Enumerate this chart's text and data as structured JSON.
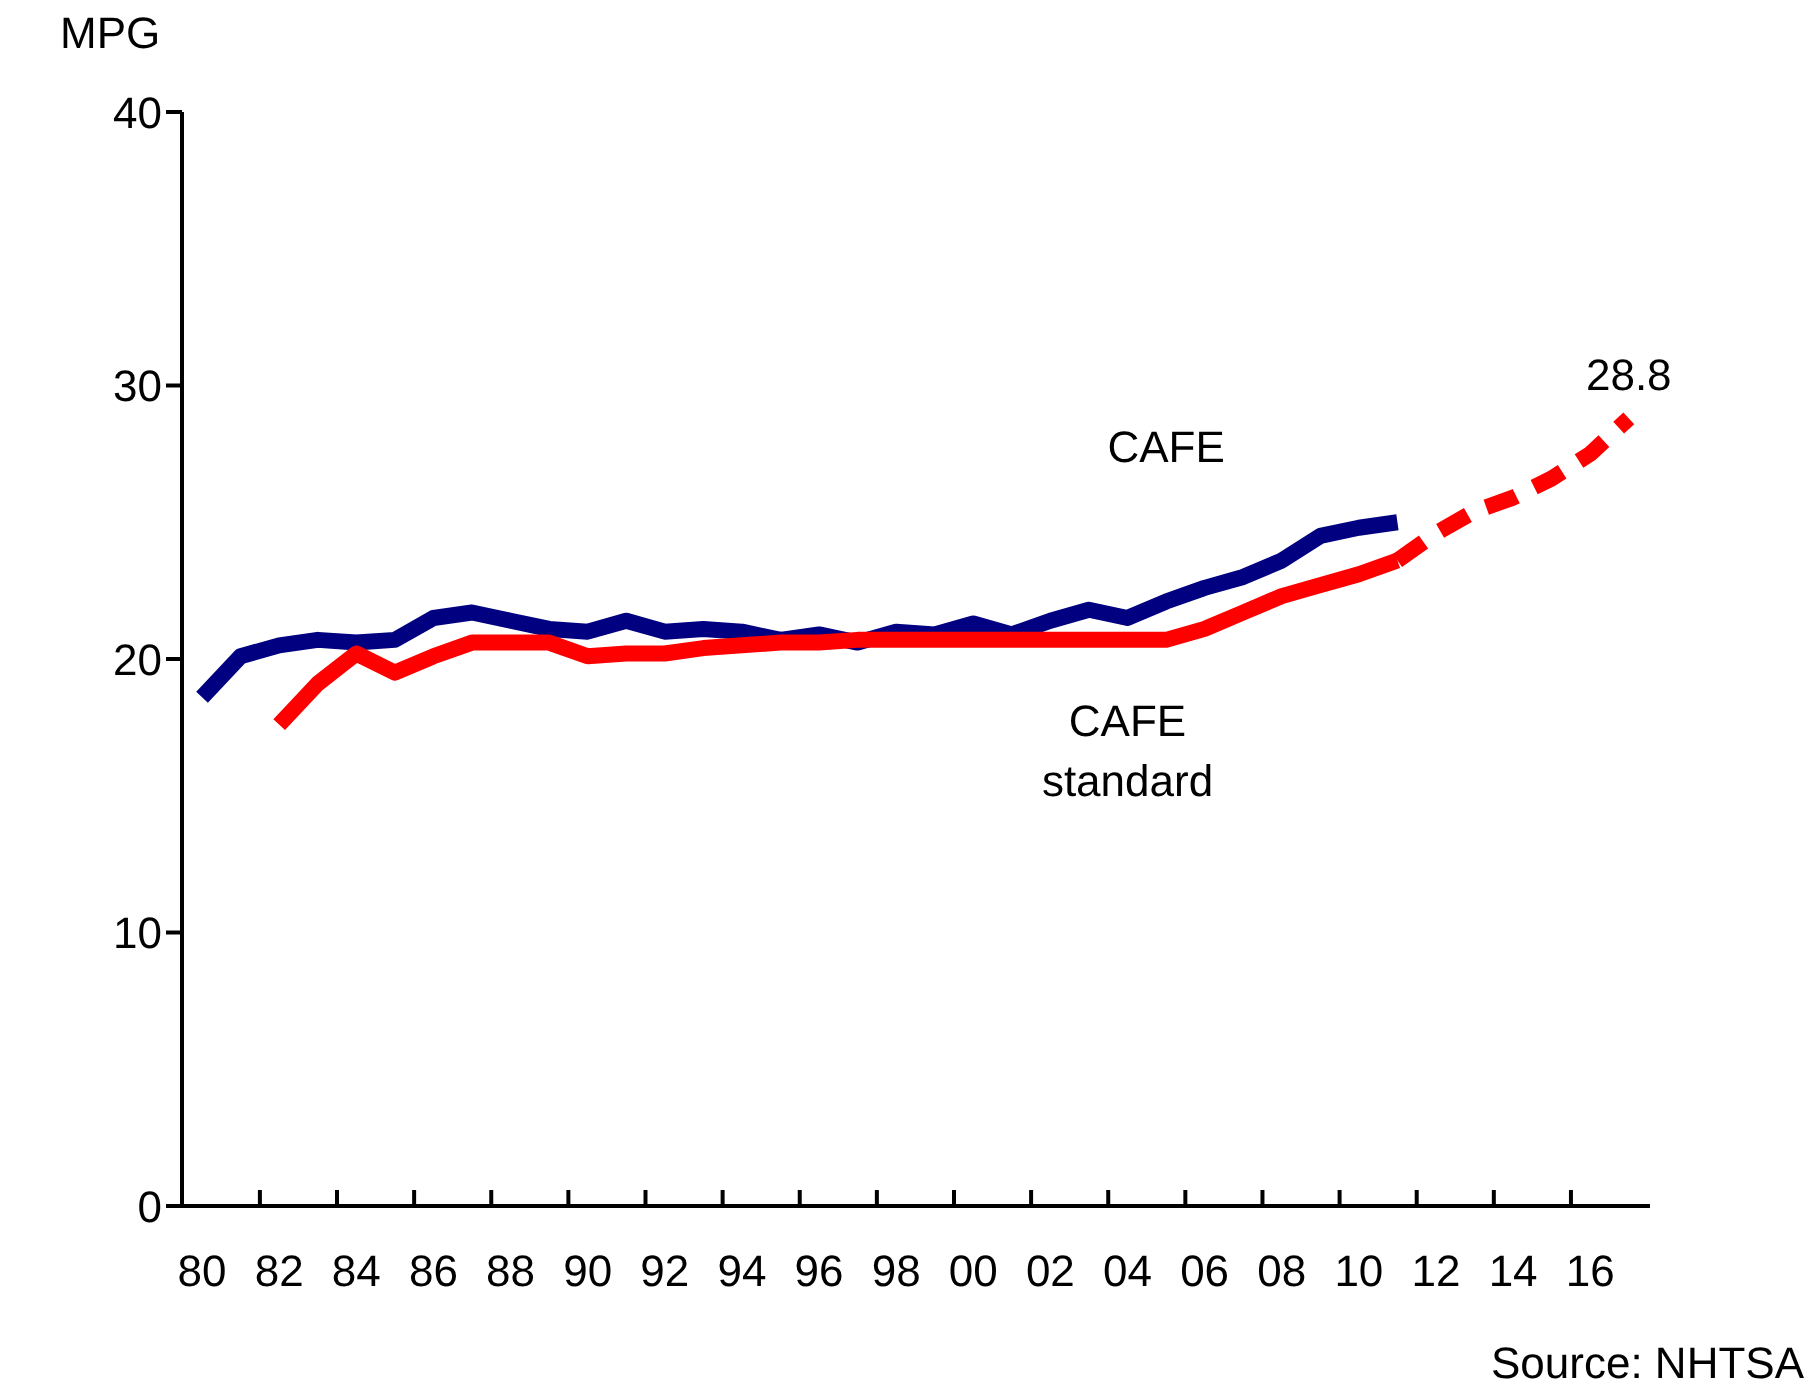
{
  "chart_data": {
    "type": "line",
    "ylabel": "MPG",
    "xlim": [
      1979.48,
      2017.55
    ],
    "ylim": [
      0,
      40
    ],
    "yticks": [
      0,
      10,
      20,
      30,
      40
    ],
    "xticks": [
      {
        "value": 1980,
        "label": "80"
      },
      {
        "value": 1982,
        "label": "82"
      },
      {
        "value": 1984,
        "label": "84"
      },
      {
        "value": 1986,
        "label": "86"
      },
      {
        "value": 1988,
        "label": "88"
      },
      {
        "value": 1990,
        "label": "90"
      },
      {
        "value": 1992,
        "label": "92"
      },
      {
        "value": 1994,
        "label": "94"
      },
      {
        "value": 1996,
        "label": "96"
      },
      {
        "value": 1998,
        "label": "98"
      },
      {
        "value": 2000,
        "label": "00"
      },
      {
        "value": 2002,
        "label": "02"
      },
      {
        "value": 2004,
        "label": "04"
      },
      {
        "value": 2006,
        "label": "06"
      },
      {
        "value": 2008,
        "label": "08"
      },
      {
        "value": 2010,
        "label": "10"
      },
      {
        "value": 2012,
        "label": "12"
      },
      {
        "value": 2014,
        "label": "14"
      },
      {
        "value": 2016,
        "label": "16"
      },
      {
        "value": 1981.5,
        "label": null
      },
      {
        "value": 1983.5,
        "label": null
      },
      {
        "value": 1985.5,
        "label": null
      },
      {
        "value": 1987.5,
        "label": null
      },
      {
        "value": 1989.5,
        "label": null
      },
      {
        "value": 1991.5,
        "label": null
      },
      {
        "value": 1993.5,
        "label": null
      },
      {
        "value": 1995.5,
        "label": null
      },
      {
        "value": 1997.5,
        "label": null
      },
      {
        "value": 1999.5,
        "label": null
      },
      {
        "value": 2001.5,
        "label": null
      },
      {
        "value": 2003.5,
        "label": null
      },
      {
        "value": 2005.5,
        "label": null
      },
      {
        "value": 2007.5,
        "label": null
      },
      {
        "value": 2009.5,
        "label": null
      },
      {
        "value": 2011.5,
        "label": null
      },
      {
        "value": 2013.5,
        "label": null
      },
      {
        "value": 2015.5,
        "label": null
      }
    ],
    "marker": "none",
    "series": [
      {
        "name": "CAFE",
        "color": "#000080",
        "x": [
          1980,
          1981,
          1982,
          1983,
          1984,
          1985,
          1986,
          1987,
          1988,
          1989,
          1990,
          1991,
          1992,
          1993,
          1994,
          1995,
          1996,
          1997,
          1998,
          1999,
          2000,
          2001,
          2002,
          2003,
          2004,
          2005,
          2006,
          2007,
          2008,
          2009,
          2010,
          2011
        ],
        "values": [
          18.6,
          20.1,
          20.5,
          20.7,
          20.6,
          20.7,
          21.5,
          21.7,
          21.4,
          21.1,
          21.0,
          21.4,
          21.0,
          21.1,
          21.0,
          20.7,
          20.9,
          20.6,
          21.0,
          20.9,
          21.3,
          20.9,
          21.4,
          21.8,
          21.5,
          22.1,
          22.6,
          23.0,
          23.6,
          24.5,
          24.8,
          25.0
        ]
      },
      {
        "name": "CAFE standard",
        "color": "#ff0000",
        "line_style": "solid",
        "x": [
          1982,
          1983,
          1984,
          1985,
          1986,
          1987,
          1988,
          1989,
          1990,
          1991,
          1992,
          1993,
          1994,
          1995,
          1996,
          1997,
          1998,
          1999,
          2000,
          2001,
          2002,
          2003,
          2004,
          2005,
          2006,
          2007,
          2008,
          2009,
          2010,
          2011
        ],
        "values": [
          17.6,
          19.1,
          20.2,
          19.5,
          20.1,
          20.6,
          20.6,
          20.6,
          20.1,
          20.2,
          20.2,
          20.4,
          20.5,
          20.6,
          20.6,
          20.7,
          20.7,
          20.7,
          20.7,
          20.7,
          20.7,
          20.7,
          20.7,
          20.7,
          21.1,
          21.7,
          22.3,
          22.7,
          23.1,
          23.6
        ]
      },
      {
        "color": "#ff0000",
        "line_style": "dashed",
        "x": [
          2011,
          2012,
          2013,
          2014,
          2015,
          2016,
          2017
        ],
        "values": [
          23.6,
          24.6,
          25.4,
          25.9,
          26.6,
          27.5,
          28.8
        ]
      }
    ],
    "annotations": [
      {
        "text": "28.8",
        "x": 2017,
        "y": 28.8
      },
      "Source: NHTSA"
    ]
  }
}
